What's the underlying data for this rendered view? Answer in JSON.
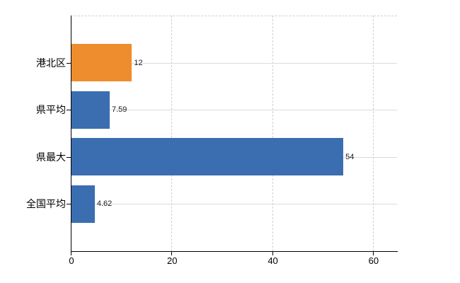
{
  "chart_data": {
    "type": "bar",
    "orientation": "horizontal",
    "title": "",
    "xlabel": "",
    "ylabel": "",
    "categories": [
      "港北区",
      "県平均",
      "県最大",
      "全国平均"
    ],
    "values": [
      12,
      7.59,
      54,
      4.62
    ],
    "value_labels": [
      "12",
      "7.59",
      "54",
      "4.62"
    ],
    "bar_colors": [
      "#ED8D2E",
      "#3B6EB0",
      "#3B6EB0",
      "#3B6EB0"
    ],
    "xticks": [
      0,
      20,
      40,
      60
    ],
    "xtick_labels": [
      "0",
      "20",
      "40",
      "60"
    ],
    "xlim": [
      0,
      64.8
    ],
    "grid": true,
    "legend_position": "none"
  },
  "colors": {
    "highlight_bar": "#ED8D2E",
    "default_bar": "#3B6EB0",
    "axis": "#000000",
    "vertical_grid": "#ccd2d2",
    "horizontal_grid": "#d7ddd7",
    "background": "#ffffff"
  }
}
